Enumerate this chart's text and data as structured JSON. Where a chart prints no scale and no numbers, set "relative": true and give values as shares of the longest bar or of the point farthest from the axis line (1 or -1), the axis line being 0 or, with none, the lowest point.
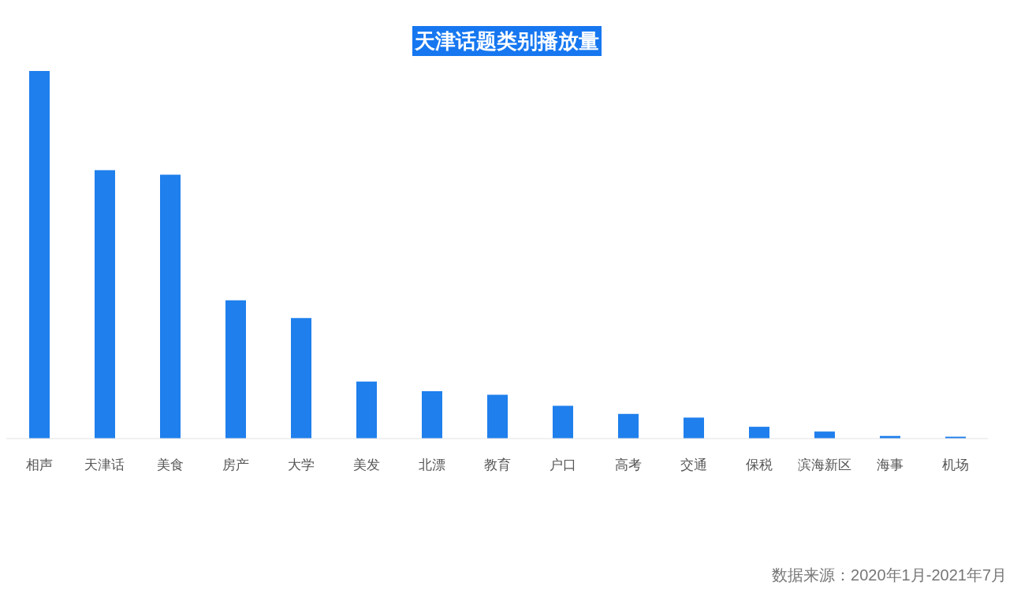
{
  "chart_data": {
    "type": "bar",
    "title": "天津话题类别播放量",
    "categories": [
      "相声",
      "天津话",
      "美食",
      "房产",
      "大学",
      "美发",
      "北漂",
      "教育",
      "户口",
      "高考",
      "交通",
      "保税",
      "滨海新区",
      "海事",
      "机场"
    ],
    "values": [
      1,
      0.73,
      0.718,
      0.376,
      0.328,
      0.155,
      0.129,
      0.119,
      0.089,
      0.067,
      0.057,
      0.032,
      0.019,
      0.007,
      0.005
    ],
    "color": "#1f7fec",
    "relative": true,
    "annotations": [
      "数据来源：2020年1月-2021年7月"
    ]
  }
}
